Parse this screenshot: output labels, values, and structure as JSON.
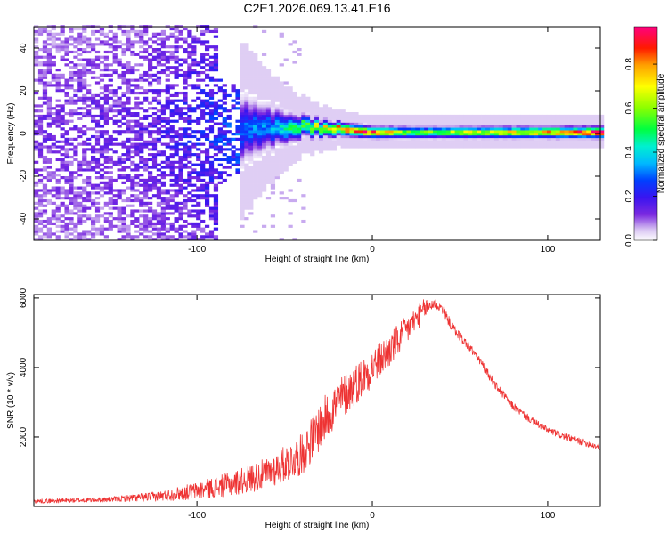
{
  "title": "C2E1.2026.069.13.41.E16",
  "chart_data": [
    {
      "type": "heatmap",
      "xlabel": "Height of straight line (km)",
      "ylabel": "Frequency (Hz)",
      "xlim": [
        -193,
        130
      ],
      "ylim": [
        -50,
        50
      ],
      "xticks": [
        -100,
        0,
        100
      ],
      "xtick_labels": [
        "-100",
        "0",
        "100"
      ],
      "yticks": [
        -40,
        -20,
        0,
        20,
        40
      ],
      "ytick_labels": [
        "-40",
        "-20",
        "0",
        "20",
        "40"
      ],
      "colorbar": {
        "label": "Normalized spectral amplitude",
        "range": [
          0,
          0.97
        ],
        "ticks": [
          0,
          0.2,
          0.4,
          0.6,
          0.8
        ],
        "tick_labels": [
          "0.0",
          "0.2",
          "0.4",
          "0.6",
          "0.8"
        ]
      },
      "ridge_profile": [
        {
          "x": -193,
          "center_hz": 0,
          "halfwidth_hz": 50,
          "peak_amp": 0.15
        },
        {
          "x": -130,
          "center_hz": 0,
          "halfwidth_hz": 50,
          "peak_amp": 0.18
        },
        {
          "x": -100,
          "center_hz": 0,
          "halfwidth_hz": 30,
          "peak_amp": 0.25
        },
        {
          "x": -60,
          "center_hz": 2,
          "halfwidth_hz": 12,
          "peak_amp": 0.35
        },
        {
          "x": -40,
          "center_hz": 3,
          "halfwidth_hz": 6,
          "peak_amp": 0.6
        },
        {
          "x": -20,
          "center_hz": 1.5,
          "halfwidth_hz": 4,
          "peak_amp": 0.85
        },
        {
          "x": 0,
          "center_hz": 0,
          "halfwidth_hz": 3.5,
          "peak_amp": 0.9
        },
        {
          "x": 20,
          "center_hz": 0,
          "halfwidth_hz": 3.5,
          "peak_amp": 0.6
        },
        {
          "x": 60,
          "center_hz": 0,
          "halfwidth_hz": 3.5,
          "peak_amp": 0.7
        },
        {
          "x": 100,
          "center_hz": 0,
          "halfwidth_hz": 3.5,
          "peak_amp": 0.85
        },
        {
          "x": 130,
          "center_hz": 0,
          "halfwidth_hz": 3.5,
          "peak_amp": 0.95
        }
      ]
    },
    {
      "type": "line",
      "xlabel": "Height of straight line (km)",
      "ylabel": "SNR (10 * v/v)",
      "xlim": [
        -193,
        130
      ],
      "ylim": [
        0,
        6100
      ],
      "xticks": [
        -100,
        0,
        100
      ],
      "xtick_labels": [
        "-100",
        "0",
        "100"
      ],
      "yticks": [
        2000,
        4000,
        6000
      ],
      "ytick_labels": [
        "2000",
        "4000",
        "6000"
      ],
      "color": "#ee3333",
      "x": [
        -193,
        -150,
        -120,
        -100,
        -80,
        -60,
        -40,
        -30,
        -20,
        -10,
        0,
        10,
        20,
        30,
        35,
        40,
        45,
        50,
        60,
        70,
        80,
        90,
        100,
        110,
        120,
        130
      ],
      "y": [
        150,
        200,
        300,
        450,
        650,
        950,
        1500,
        2300,
        3000,
        3500,
        4000,
        4500,
        5100,
        5700,
        5850,
        5700,
        5200,
        4900,
        4300,
        3500,
        2900,
        2500,
        2200,
        2000,
        1850,
        1700
      ],
      "noise": [
        60,
        70,
        150,
        250,
        350,
        450,
        600,
        700,
        650,
        600,
        550,
        500,
        450,
        300,
        180,
        160,
        140,
        140,
        130,
        120,
        110,
        100,
        100,
        100,
        100,
        90
      ]
    }
  ]
}
